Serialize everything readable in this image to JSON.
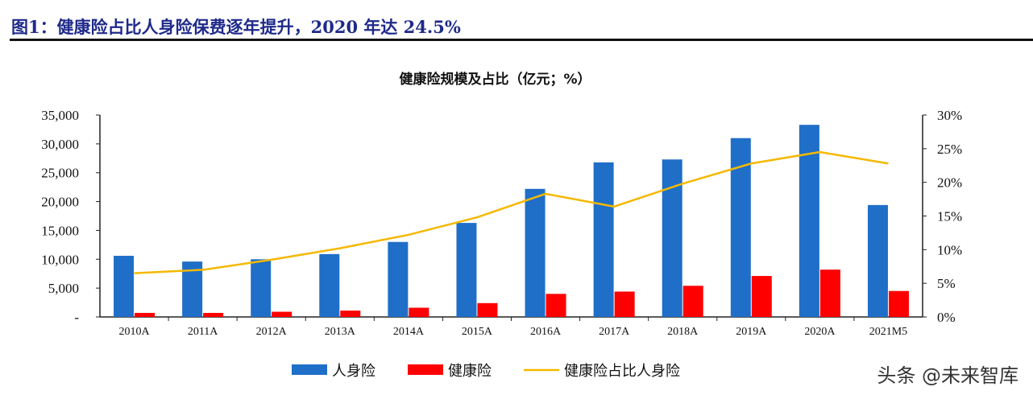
{
  "figure_title": "图1：健康险占比人身险保费逐年提升，2020 年达 24.5%",
  "watermark": "头条 @未来智库",
  "chart_data": {
    "type": "bar",
    "title": "健康险规模及占比（亿元；%）",
    "categories": [
      "2010A",
      "2011A",
      "2012A",
      "2013A",
      "2014A",
      "2015A",
      "2016A",
      "2017A",
      "2018A",
      "2019A",
      "2020A",
      "2021M5"
    ],
    "series": [
      {
        "name": "人身险",
        "type": "bar",
        "axis": "left",
        "color": "#1f6fc8",
        "values": [
          10600,
          9600,
          10000,
          10900,
          13000,
          16300,
          22200,
          26800,
          27300,
          31000,
          33300,
          19400
        ]
      },
      {
        "name": "健康险",
        "type": "bar",
        "axis": "left",
        "color": "#ff0000",
        "values": [
          700,
          700,
          900,
          1100,
          1600,
          2400,
          4000,
          4400,
          5400,
          7100,
          8200,
          4500
        ]
      },
      {
        "name": "健康险占比人身险",
        "type": "line",
        "axis": "right",
        "color": "#f5b800",
        "values": [
          6.5,
          7.0,
          8.5,
          10.2,
          12.2,
          14.8,
          18.3,
          16.4,
          19.8,
          22.8,
          24.5,
          22.8
        ]
      }
    ],
    "y_left": {
      "ylim": [
        0,
        35000
      ],
      "ticks": [
        "-",
        "5,000",
        "10,000",
        "15,000",
        "20,000",
        "25,000",
        "30,000",
        "35,000"
      ]
    },
    "y_right": {
      "ylim": [
        0,
        30
      ],
      "ticks": [
        "0%",
        "5%",
        "10%",
        "15%",
        "20%",
        "25%",
        "30%"
      ]
    },
    "grid": false,
    "legend_placement": "bottom"
  }
}
